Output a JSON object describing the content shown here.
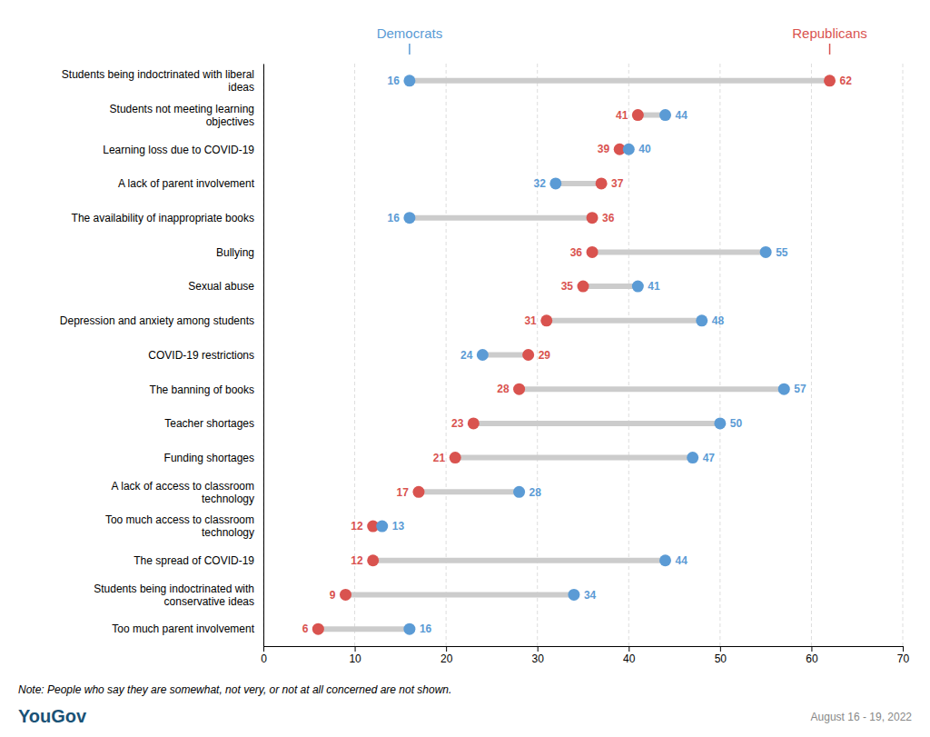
{
  "chart_data": {
    "type": "dumbbell",
    "categories": [
      "Students being indoctrinated with liberal\nideas",
      "Students not meeting learning\nobjectives",
      "Learning loss due to COVID-19",
      "A lack of parent involvement",
      "The availability of inappropriate books",
      "Bullying",
      "Sexual abuse",
      "Depression and anxiety among students",
      "COVID-19 restrictions",
      "The banning of books",
      "Teacher shortages",
      "Funding shortages",
      "A lack of access to classroom\ntechnology",
      "Too much access to classroom\ntechnology",
      "The spread of COVID-19",
      "Students being indoctrinated with\nconservative ideas",
      "Too much parent involvement"
    ],
    "series": [
      {
        "name": "Republicans",
        "color": "#d9534f",
        "values": [
          62,
          41,
          39,
          37,
          36,
          36,
          35,
          31,
          29,
          28,
          23,
          21,
          17,
          12,
          12,
          9,
          6
        ]
      },
      {
        "name": "Democrats",
        "color": "#5b9bd5",
        "values": [
          16,
          44,
          40,
          32,
          16,
          55,
          41,
          48,
          24,
          57,
          50,
          47,
          28,
          13,
          44,
          34,
          16
        ]
      }
    ],
    "color": "#cccccc",
    "xlim": [
      0,
      70
    ],
    "xticks": [
      0,
      10,
      20,
      30,
      40,
      50,
      60,
      70
    ],
    "grid": true,
    "data_labels": true,
    "annotations": [
      "Note: People who say they are somewhat, not very, or not at all concerned are not shown.",
      "YouGov",
      "August 16 - 19, 2022"
    ]
  }
}
